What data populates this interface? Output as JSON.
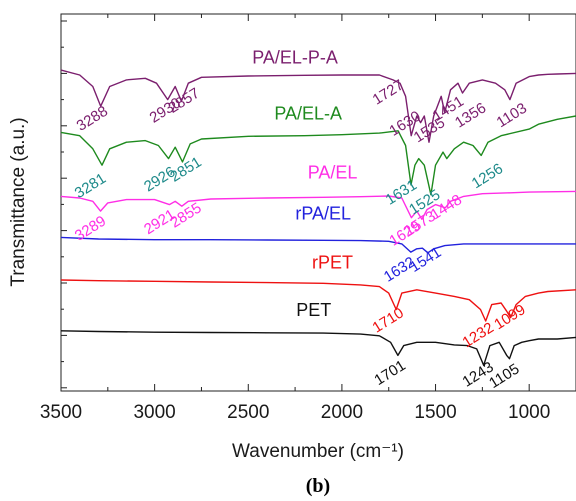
{
  "chart_data": {
    "type": "line",
    "title": "",
    "xlabel": "Wavenumber (cm⁻¹)",
    "ylabel": "Transmittance (a.u.)",
    "panel_label": "(b)",
    "x_reversed": true,
    "xlim": [
      3500,
      750
    ],
    "ylim": [
      0,
      100
    ],
    "x_ticks": [
      "3500",
      "3000",
      "2500",
      "2000",
      "1500",
      "1000"
    ],
    "grid": false,
    "series": [
      {
        "name": "PA/EL-P-A",
        "color": "#7b1f6e",
        "label_at": [
          2250,
          91
        ],
        "points": [
          [
            3500,
            89
          ],
          [
            3400,
            87.5
          ],
          [
            3330,
            84
          ],
          [
            3288,
            78
          ],
          [
            3240,
            84
          ],
          [
            3150,
            86
          ],
          [
            3050,
            86.5
          ],
          [
            2990,
            85
          ],
          [
            2930,
            80
          ],
          [
            2890,
            84
          ],
          [
            2857,
            79.5
          ],
          [
            2820,
            85
          ],
          [
            2750,
            86.8
          ],
          [
            2500,
            87.2
          ],
          [
            2200,
            87.4
          ],
          [
            2000,
            87.5
          ],
          [
            1800,
            87.5
          ],
          [
            1727,
            86
          ],
          [
            1690,
            85
          ],
          [
            1660,
            81
          ],
          [
            1630,
            69
          ],
          [
            1600,
            75
          ],
          [
            1580,
            73
          ],
          [
            1560,
            75
          ],
          [
            1535,
            67
          ],
          [
            1510,
            75
          ],
          [
            1470,
            81
          ],
          [
            1451,
            76
          ],
          [
            1420,
            83
          ],
          [
            1380,
            85
          ],
          [
            1356,
            82
          ],
          [
            1320,
            85
          ],
          [
            1250,
            86
          ],
          [
            1180,
            85
          ],
          [
            1130,
            83
          ],
          [
            1103,
            80
          ],
          [
            1070,
            85
          ],
          [
            1000,
            87
          ],
          [
            950,
            87.5
          ],
          [
            900,
            87.7
          ],
          [
            850,
            87.8
          ],
          [
            750,
            88
          ]
        ]
      },
      {
        "name": "PA/EL-A",
        "color": "#1e8a1e",
        "label_at": [
          2180,
          74
        ],
        "points": [
          [
            3500,
            70
          ],
          [
            3400,
            69
          ],
          [
            3330,
            65
          ],
          [
            3281,
            60
          ],
          [
            3240,
            65
          ],
          [
            3150,
            67
          ],
          [
            3050,
            67.5
          ],
          [
            2980,
            66
          ],
          [
            2926,
            62
          ],
          [
            2890,
            65.5
          ],
          [
            2851,
            61
          ],
          [
            2810,
            66.5
          ],
          [
            2750,
            68
          ],
          [
            2500,
            68.8
          ],
          [
            2200,
            69
          ],
          [
            2000,
            69.3
          ],
          [
            1800,
            69.8
          ],
          [
            1700,
            70.5
          ],
          [
            1660,
            66
          ],
          [
            1631,
            54
          ],
          [
            1610,
            60
          ],
          [
            1590,
            62
          ],
          [
            1560,
            60
          ],
          [
            1525,
            51
          ],
          [
            1500,
            60
          ],
          [
            1460,
            64
          ],
          [
            1440,
            62
          ],
          [
            1400,
            65
          ],
          [
            1350,
            67
          ],
          [
            1300,
            66
          ],
          [
            1256,
            63
          ],
          [
            1220,
            67
          ],
          [
            1150,
            69
          ],
          [
            1000,
            71
          ],
          [
            950,
            72.5
          ],
          [
            850,
            74
          ],
          [
            750,
            75
          ]
        ]
      },
      {
        "name": "PA/EL",
        "color": "#ff2ee6",
        "label_at": [
          2050,
          56
        ],
        "points": [
          [
            3500,
            50.5
          ],
          [
            3400,
            50
          ],
          [
            3330,
            49
          ],
          [
            3289,
            46
          ],
          [
            3250,
            48.5
          ],
          [
            3150,
            49.5
          ],
          [
            3000,
            49.5
          ],
          [
            2921,
            48
          ],
          [
            2890,
            49
          ],
          [
            2855,
            47.5
          ],
          [
            2820,
            49
          ],
          [
            2700,
            49.7
          ],
          [
            2400,
            50
          ],
          [
            2100,
            50.2
          ],
          [
            1900,
            50.4
          ],
          [
            1750,
            50.6
          ],
          [
            1680,
            50
          ],
          [
            1629,
            44
          ],
          [
            1600,
            46
          ],
          [
            1573,
            43.5
          ],
          [
            1545,
            46.5
          ],
          [
            1500,
            48
          ],
          [
            1448,
            47
          ],
          [
            1420,
            49
          ],
          [
            1350,
            50.5
          ],
          [
            1250,
            51.3
          ],
          [
            1100,
            51.6
          ],
          [
            1000,
            51.8
          ],
          [
            900,
            51.9
          ],
          [
            750,
            52
          ]
        ]
      },
      {
        "name": "rPA/EL",
        "color": "#2222dd",
        "label_at": [
          2100,
          43.5
        ],
        "points": [
          [
            3500,
            38
          ],
          [
            3300,
            37.5
          ],
          [
            3000,
            37.3
          ],
          [
            2700,
            37.3
          ],
          [
            2400,
            37.2
          ],
          [
            2100,
            37.1
          ],
          [
            1900,
            37
          ],
          [
            1750,
            36.8
          ],
          [
            1680,
            36
          ],
          [
            1632,
            33.5
          ],
          [
            1600,
            34.5
          ],
          [
            1570,
            34.7
          ],
          [
            1541,
            33.3
          ],
          [
            1510,
            34.5
          ],
          [
            1450,
            35.5
          ],
          [
            1350,
            36
          ],
          [
            1200,
            36
          ],
          [
            1000,
            36
          ],
          [
            900,
            36
          ],
          [
            750,
            36
          ]
        ]
      },
      {
        "name": "rPET",
        "color": "#ee1111",
        "label_at": [
          2050,
          28.5
        ],
        "points": [
          [
            3500,
            25
          ],
          [
            3300,
            24.8
          ],
          [
            3000,
            24.6
          ],
          [
            2700,
            24.4
          ],
          [
            2400,
            24.2
          ],
          [
            2100,
            24
          ],
          [
            1900,
            23.5
          ],
          [
            1800,
            23
          ],
          [
            1750,
            21
          ],
          [
            1710,
            16
          ],
          [
            1680,
            21
          ],
          [
            1600,
            22
          ],
          [
            1500,
            21
          ],
          [
            1400,
            20
          ],
          [
            1320,
            19
          ],
          [
            1260,
            16
          ],
          [
            1232,
            12.5
          ],
          [
            1200,
            17.5
          ],
          [
            1150,
            18
          ],
          [
            1120,
            15.5
          ],
          [
            1099,
            13.5
          ],
          [
            1070,
            17.5
          ],
          [
            1020,
            20
          ],
          [
            950,
            21
          ],
          [
            900,
            21.5
          ],
          [
            750,
            22
          ]
        ]
      },
      {
        "name": "PET",
        "color": "#111111",
        "label_at": [
          2150,
          14
        ],
        "points": [
          [
            3500,
            9.5
          ],
          [
            3300,
            9.3
          ],
          [
            3000,
            9.1
          ],
          [
            2700,
            9
          ],
          [
            2400,
            8.9
          ],
          [
            2100,
            8.8
          ],
          [
            1900,
            8.5
          ],
          [
            1800,
            8
          ],
          [
            1740,
            6
          ],
          [
            1701,
            2
          ],
          [
            1670,
            5
          ],
          [
            1600,
            6
          ],
          [
            1500,
            6
          ],
          [
            1400,
            5.2
          ],
          [
            1330,
            5
          ],
          [
            1280,
            4
          ],
          [
            1243,
            -1
          ],
          [
            1210,
            5
          ],
          [
            1160,
            6
          ],
          [
            1120,
            2
          ],
          [
            1105,
            1
          ],
          [
            1080,
            5
          ],
          [
            1040,
            6
          ],
          [
            1000,
            6.5
          ],
          [
            950,
            7
          ],
          [
            900,
            7
          ],
          [
            850,
            7
          ],
          [
            750,
            7.5
          ]
        ]
      }
    ],
    "annotations": [
      {
        "text": "3288",
        "x": 3320,
        "y": 73,
        "color": "#7b1f6e"
      },
      {
        "text": "2930",
        "x": 2930,
        "y": 75.5,
        "color": "#7b1f6e"
      },
      {
        "text": "2857",
        "x": 2830,
        "y": 78.5,
        "color": "#7b1f6e"
      },
      {
        "text": "1727",
        "x": 1740,
        "y": 81,
        "color": "#7b1f6e"
      },
      {
        "text": "1630",
        "x": 1650,
        "y": 71.5,
        "color": "#7b1f6e"
      },
      {
        "text": "1535",
        "x": 1520,
        "y": 69.5,
        "color": "#7b1f6e"
      },
      {
        "text": "1451",
        "x": 1420,
        "y": 76,
        "color": "#7b1f6e"
      },
      {
        "text": "1356",
        "x": 1300,
        "y": 74,
        "color": "#7b1f6e"
      },
      {
        "text": "1103",
        "x": 1080,
        "y": 74,
        "color": "#7b1f6e"
      },
      {
        "text": "3281",
        "x": 3330,
        "y": 52.5,
        "color": "#1e8a8a"
      },
      {
        "text": "2926",
        "x": 2960,
        "y": 54.5,
        "color": "#1e8a8a"
      },
      {
        "text": "2851",
        "x": 2820,
        "y": 57.5,
        "color": "#1e8a8a"
      },
      {
        "text": "1631",
        "x": 1670,
        "y": 50.5,
        "color": "#1e8a8a"
      },
      {
        "text": "1525",
        "x": 1545,
        "y": 47.5,
        "color": "#1e8a8a"
      },
      {
        "text": "1256",
        "x": 1210,
        "y": 55.5,
        "color": "#1e8a8a"
      },
      {
        "text": "3289",
        "x": 3330,
        "y": 39.5,
        "color": "#ff2ee6"
      },
      {
        "text": "2921",
        "x": 2960,
        "y": 41.5,
        "color": "#ff2ee6"
      },
      {
        "text": "2855",
        "x": 2820,
        "y": 43.5,
        "color": "#ff2ee6"
      },
      {
        "text": "1629",
        "x": 1650,
        "y": 38,
        "color": "#ff2ee6"
      },
      {
        "text": "1573",
        "x": 1570,
        "y": 41,
        "color": "#ff2ee6"
      },
      {
        "text": "1448",
        "x": 1430,
        "y": 46,
        "color": "#ff2ee6"
      },
      {
        "text": "1632",
        "x": 1680,
        "y": 27,
        "color": "#2222dd"
      },
      {
        "text": "1541",
        "x": 1540,
        "y": 30,
        "color": "#2222dd"
      },
      {
        "text": "1710",
        "x": 1740,
        "y": 11.5,
        "color": "#ee1111"
      },
      {
        "text": "1232",
        "x": 1260,
        "y": 7,
        "color": "#ee1111"
      },
      {
        "text": "1099",
        "x": 1090,
        "y": 12.5,
        "color": "#ee1111"
      },
      {
        "text": "1701",
        "x": 1730,
        "y": -4.5,
        "color": "#111111"
      },
      {
        "text": "1243",
        "x": 1260,
        "y": -5,
        "color": "#111111"
      },
      {
        "text": "1105",
        "x": 1120,
        "y": -5.5,
        "color": "#111111"
      }
    ]
  }
}
